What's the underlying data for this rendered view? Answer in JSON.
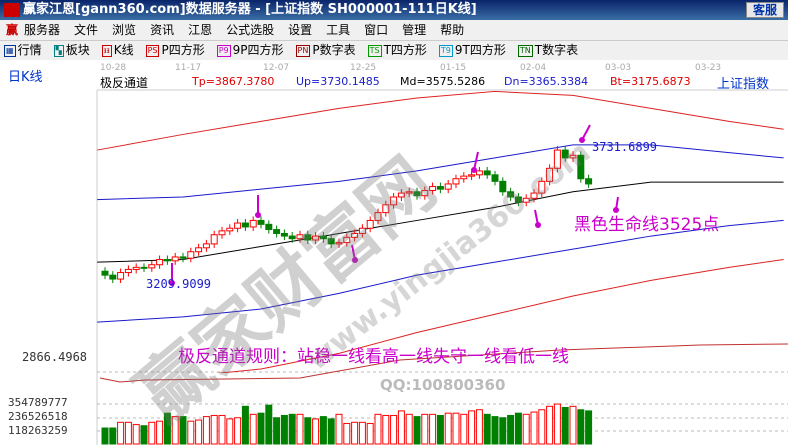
{
  "window": {
    "title": "赢家江恩[gann360.com]数据服务器 - [上证指数  SH000001-111日K线]",
    "kefu": "客服"
  },
  "menu": [
    "服务器",
    "文件",
    "浏览",
    "资讯",
    "江恩",
    "公式选股",
    "设置",
    "工具",
    "窗口",
    "管理",
    "帮助"
  ],
  "toolbar": [
    {
      "icon": "quote-grid-icon",
      "tag": "▦",
      "label": "行情",
      "color": "#003399"
    },
    {
      "icon": "sector-blocks-icon",
      "tag": "▚",
      "label": "板块",
      "color": "#008080"
    },
    {
      "icon": "kline-icon",
      "tag": "ᵻᵻ",
      "label": "K线",
      "color": "#cc0000"
    },
    {
      "icon": "ps-icon",
      "tag": "PS",
      "label": "P四方形",
      "color": "#cc0000"
    },
    {
      "icon": "p9-icon",
      "tag": "P9",
      "label": "9P四方形",
      "color": "#cc00cc"
    },
    {
      "icon": "pn-icon",
      "tag": "PN",
      "label": "P数字表",
      "color": "#990000"
    },
    {
      "icon": "ts-icon",
      "tag": "TS",
      "label": "T四方形",
      "color": "#009900"
    },
    {
      "icon": "t9-icon",
      "tag": "T9",
      "label": "9T四方形",
      "color": "#0099cc"
    },
    {
      "icon": "tn-icon",
      "tag": "TN",
      "label": "T数字表",
      "color": "#006600"
    }
  ],
  "chart": {
    "period": "日K线",
    "indicator": "极反通道",
    "readout": {
      "tp": "Tp=3867.3780",
      "up": "Up=3730.1485",
      "md": "Md=3575.5286",
      "dn": "Dn=3365.3384",
      "bt": "Bt=3175.6873"
    },
    "symbol": "上证指数",
    "dates": [
      "10-28",
      "11-17",
      "12-07",
      "12-25",
      "01-15",
      "02-04",
      "03-03",
      "03-23"
    ],
    "price_labels": {
      "high": "3731.6899",
      "low": "3209.9099",
      "axis": "2866.4968"
    },
    "vol_labels": [
      "354789777",
      "236526518",
      "118263259"
    ],
    "note_life_line": "黑色生命线3525点",
    "rule": "极反通道规则：站稳一线看高一线失守一线看低一线",
    "qq": "QQ:100800360",
    "watermark": "赢家财富网",
    "watermark_url": "www.yingjia360.com",
    "colors": {
      "up": "#ff0000",
      "down": "#008000",
      "band_outer": "#dd2222",
      "band_inner": "#1a1acc",
      "mid": "#000000",
      "annot": "#cc00cc"
    }
  },
  "chart_data": {
    "type": "candlestick",
    "open": [
      3255,
      3240,
      3225,
      3250,
      3262,
      3270,
      3268,
      3280,
      3300,
      3295,
      3310,
      3305,
      3330,
      3345,
      3360,
      3395,
      3410,
      3420,
      3440,
      3425,
      3450,
      3435,
      3415,
      3400,
      3390,
      3380,
      3395,
      3375,
      3390,
      3380,
      3360,
      3365,
      3385,
      3400,
      3420,
      3450,
      3480,
      3510,
      3540,
      3555,
      3560,
      3545,
      3565,
      3580,
      3570,
      3590,
      3610,
      3620,
      3625,
      3640,
      3625,
      3600,
      3560,
      3540,
      3520,
      3535,
      3555,
      3600,
      3650,
      3720,
      3690,
      3700,
      3610
    ],
    "close": [
      3240,
      3225,
      3250,
      3262,
      3270,
      3268,
      3280,
      3300,
      3295,
      3310,
      3305,
      3330,
      3345,
      3360,
      3395,
      3410,
      3420,
      3440,
      3425,
      3450,
      3435,
      3415,
      3400,
      3390,
      3380,
      3395,
      3375,
      3390,
      3380,
      3360,
      3365,
      3385,
      3400,
      3420,
      3450,
      3480,
      3510,
      3540,
      3555,
      3560,
      3545,
      3565,
      3580,
      3570,
      3590,
      3610,
      3620,
      3625,
      3640,
      3625,
      3600,
      3560,
      3540,
      3520,
      3535,
      3555,
      3600,
      3650,
      3720,
      3690,
      3700,
      3610,
      3590
    ],
    "volume": [
      140000000.0,
      140000000.0,
      190000000.0,
      190000000.0,
      170000000.0,
      160000000.0,
      190000000.0,
      200000000.0,
      270000000.0,
      240000000.0,
      240000000.0,
      200000000.0,
      210000000.0,
      240000000.0,
      250000000.0,
      250000000.0,
      220000000.0,
      230000000.0,
      330000000.0,
      260000000.0,
      270000000.0,
      340000000.0,
      230000000.0,
      250000000.0,
      260000000.0,
      260000000.0,
      230000000.0,
      220000000.0,
      240000000.0,
      220000000.0,
      260000000.0,
      180000000.0,
      190000000.0,
      190000000.0,
      180000000.0,
      260000000.0,
      250000000.0,
      250000000.0,
      290000000.0,
      260000000.0,
      240000000.0,
      260000000.0,
      260000000.0,
      250000000.0,
      270000000.0,
      270000000.0,
      260000000.0,
      290000000.0,
      300000000.0,
      260000000.0,
      240000000.0,
      230000000.0,
      250000000.0,
      270000000.0,
      260000000.0,
      280000000.0,
      300000000.0,
      330000000.0,
      350000000.0,
      320000000.0,
      330000000.0,
      300000000.0,
      290000000.0
    ],
    "bands": {
      "index": [
        -1,
        10,
        20,
        30,
        40,
        50,
        60,
        70,
        80,
        87
      ],
      "Tp": [
        3720,
        3780,
        3830,
        3880,
        3920,
        3945,
        3930,
        3880,
        3830,
        3800
      ],
      "Up": [
        3530,
        3540,
        3570,
        3600,
        3640,
        3690,
        3740,
        3740,
        3710,
        3690
      ],
      "Md": [
        3290,
        3300,
        3350,
        3400,
        3450,
        3500,
        3560,
        3597,
        3597,
        3597
      ],
      "Dn": [
        3060,
        3080,
        3110,
        3170,
        3240,
        3290,
        3340,
        3390,
        3430,
        3450
      ],
      "Bt": [
        2830,
        2850,
        2880,
        2940,
        3020,
        3090,
        3160,
        3220,
        3270,
        3300
      ]
    },
    "arrows": [
      9,
      20,
      34,
      48,
      55,
      61,
      66
    ]
  }
}
